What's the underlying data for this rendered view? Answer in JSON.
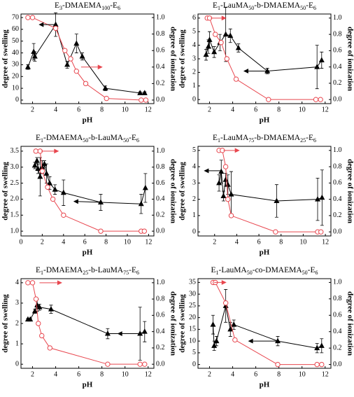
{
  "chart_data": [
    {
      "type": "scatter-line",
      "title": [
        "E",
        "3",
        "-DMAEMA",
        "100",
        "-E",
        "6"
      ],
      "xlabel": "pH",
      "ylabel": "degree of swelling",
      "y2label": "degree of ionization",
      "xlim": [
        1,
        12.5
      ],
      "xticks": [
        2,
        4,
        6,
        8,
        10,
        12
      ],
      "ylim": [
        -3,
        73
      ],
      "yticks": [
        0,
        10,
        20,
        30,
        40,
        50,
        60,
        70
      ],
      "y2lim": [
        -0.043,
        1.043
      ],
      "y2ticks": [
        {
          "value": 0,
          "label": "0.0"
        },
        0.2,
        0.4,
        0.6,
        0.8,
        {
          "value": 1,
          "label": "1.0"
        }
      ],
      "series": [
        {
          "color": "#000000",
          "marker": "triangle",
          "x": [
            1.6,
            2.1,
            2.2,
            4.0,
            5.0,
            5.8,
            6.3,
            8.3,
            11.3,
            11.7
          ],
          "values": [
            28,
            41,
            37,
            64,
            30,
            48,
            37,
            10,
            6,
            6
          ],
          "errors": [
            2,
            7,
            4,
            10,
            3,
            8,
            3,
            2,
            1,
            1
          ]
        },
        {
          "color": "#e8474f",
          "marker": "circle",
          "axis": "y2",
          "x": [
            1.6,
            2.0,
            4.0,
            4.8,
            5.3,
            5.8,
            6.6,
            8.4,
            11.4,
            11.8
          ],
          "values": [
            1.0,
            1.0,
            0.87,
            0.6,
            0.5,
            0.35,
            0.2,
            0.02,
            0.0,
            0.0
          ]
        }
      ],
      "arrows": [
        {
          "color": "#000000",
          "from": [
            4.0,
            64
          ],
          "to": [
            2.6,
            64
          ]
        },
        {
          "color": "#e8474f",
          "axis": "y2",
          "from": [
            6.2,
            0.4
          ],
          "to": [
            8.0,
            0.4
          ]
        }
      ]
    },
    {
      "type": "scatter-line",
      "title": [
        "E",
        "1",
        "-LauMA",
        "50",
        "-b-DMAEMA",
        "50",
        "-E",
        "6"
      ],
      "xlabel": "pH",
      "ylabel": "degree of swelling",
      "y2label": "degree of ionization",
      "xlim": [
        1,
        12.5
      ],
      "xticks": [
        2,
        4,
        6,
        8,
        10,
        12
      ],
      "ylim": [
        -0.3,
        6.3
      ],
      "yticks": [
        0,
        1,
        2,
        3,
        4,
        5,
        6
      ],
      "y2lim": [
        -0.05,
        1.05
      ],
      "y2ticks": [
        {
          "value": 0,
          "label": "0.0"
        },
        0.2,
        0.4,
        0.6,
        0.8,
        {
          "value": 1,
          "label": "1.0"
        }
      ],
      "series": [
        {
          "color": "#000000",
          "marker": "triangle",
          "x": [
            1.7,
            1.9,
            2.0,
            2.4,
            2.9,
            3.4,
            3.8,
            4.5,
            7.0,
            11.3,
            11.7
          ],
          "values": [
            3.3,
            3.9,
            4.4,
            3.5,
            4.2,
            4.8,
            4.7,
            3.8,
            2.1,
            2.4,
            2.9
          ],
          "errors": [
            0.4,
            0.5,
            0.6,
            0.4,
            0.6,
            2.0,
            0.5,
            0.3,
            0.2,
            1.6,
            0.6
          ]
        },
        {
          "color": "#e8474f",
          "marker": "circle",
          "axis": "y2",
          "x": [
            1.8,
            2.0,
            2.5,
            3.0,
            3.5,
            4.3,
            7.1,
            11.2,
            11.6
          ],
          "values": [
            1.0,
            1.0,
            0.8,
            0.7,
            0.5,
            0.25,
            0.0,
            0.0,
            0.0
          ]
        }
      ],
      "arrows": [
        {
          "color": "#e8474f",
          "axis": "y2",
          "from": [
            2.1,
            1.0
          ],
          "to": [
            3.4,
            1.0
          ]
        },
        {
          "color": "#000000",
          "from": [
            7.0,
            2.1
          ],
          "to": [
            5.0,
            2.1
          ]
        }
      ]
    },
    {
      "type": "scatter-line",
      "title": [
        "E",
        "1",
        "-DMAEMA",
        "50",
        "-b-LauMA",
        "50",
        "-E",
        "6"
      ],
      "xlabel": "pH",
      "ylabel": "degree of swelling",
      "y2label": "degree of ionization",
      "xlim": [
        0,
        12.5
      ],
      "xticks": [
        0,
        2,
        4,
        6,
        8,
        10,
        12
      ],
      "ylim": [
        0.85,
        3.65
      ],
      "yticks": [
        {
          "value": 1,
          "label": "1.0"
        },
        1.5,
        {
          "value": 2,
          "label": "2.0"
        },
        2.5,
        {
          "value": 3,
          "label": "3.0"
        },
        3.5
      ],
      "y2lim": [
        -0.06,
        1.06
      ],
      "y2ticks": [
        {
          "value": 0,
          "label": "0.0"
        },
        0.2,
        0.4,
        0.6,
        0.8,
        {
          "value": 1,
          "label": "1.0"
        }
      ],
      "series": [
        {
          "color": "#000000",
          "marker": "triangle",
          "x": [
            1.3,
            1.5,
            1.6,
            1.8,
            2.0,
            2.2,
            2.4,
            2.7,
            3.2,
            4.0,
            7.5,
            11.3,
            11.7
          ],
          "values": [
            3.05,
            3.2,
            2.95,
            2.7,
            3.0,
            3.1,
            2.8,
            2.5,
            2.3,
            2.2,
            1.9,
            1.85,
            2.35
          ],
          "errors": [
            0.1,
            0.1,
            0.15,
            0.6,
            0.2,
            0.1,
            0.3,
            0.2,
            0.15,
            0.4,
            0.25,
            0.3,
            0.45
          ]
        },
        {
          "color": "#e8474f",
          "marker": "circle",
          "axis": "y2",
          "x": [
            1.4,
            1.8,
            2.0,
            2.5,
            3.0,
            4.0,
            7.5,
            11.3,
            11.6
          ],
          "values": [
            1.0,
            1.0,
            0.75,
            0.55,
            0.4,
            0.2,
            0.0,
            0.0,
            0.0
          ]
        }
      ],
      "arrows": [
        {
          "color": "#e8474f",
          "axis": "y2",
          "from": [
            1.9,
            1.0
          ],
          "to": [
            3.5,
            1.0
          ]
        },
        {
          "color": "#000000",
          "from": [
            7.5,
            1.9
          ],
          "to": [
            5.0,
            1.93
          ]
        }
      ]
    },
    {
      "type": "scatter-line",
      "title": [
        "E",
        "1",
        "-LauMA",
        "75",
        "-b-DMAEMA",
        "25",
        "-E",
        "6"
      ],
      "xlabel": "pH",
      "ylabel": "degree of swelling",
      "y2label": "degree of ionization",
      "xlim": [
        0.5,
        12.5
      ],
      "xticks": [
        2,
        4,
        6,
        8,
        10,
        12
      ],
      "ylim": [
        -0.25,
        5.25
      ],
      "yticks": [
        0,
        1,
        2,
        3,
        4,
        5
      ],
      "y2lim": [
        -0.05,
        1.05
      ],
      "y2ticks": [
        {
          "value": 0,
          "label": "0.0"
        },
        0.2,
        0.4,
        0.6,
        0.8,
        {
          "value": 1,
          "label": "1.0"
        }
      ],
      "series": [
        {
          "color": "#000000",
          "marker": "triangle",
          "x": [
            2.4,
            2.6,
            2.8,
            3.0,
            3.2,
            3.5,
            7.6,
            11.3,
            11.7
          ],
          "values": [
            3.0,
            3.7,
            2.2,
            3.2,
            2.9,
            2.3,
            1.9,
            2.0,
            2.1
          ],
          "errors": [
            0.5,
            0.7,
            0.3,
            0.4,
            0.6,
            1.4,
            1.0,
            1.3,
            1.7
          ]
        },
        {
          "color": "#e8474f",
          "marker": "circle",
          "axis": "y2",
          "x": [
            2.4,
            2.7,
            3.0,
            3.2,
            3.5,
            7.5,
            11.3,
            11.6
          ],
          "values": [
            1.0,
            1.0,
            0.8,
            0.4,
            0.2,
            0.0,
            0.0,
            0.0
          ]
        }
      ],
      "arrows": [
        {
          "color": "#e8474f",
          "axis": "y2",
          "from": [
            2.8,
            1.0
          ],
          "to": [
            4.2,
            1.0
          ]
        },
        {
          "color": "#000000",
          "from": [
            2.6,
            3.75
          ],
          "to": [
            1.1,
            3.75
          ]
        }
      ]
    },
    {
      "type": "scatter-line",
      "title": [
        "E",
        "1",
        "-DMAEMA",
        "25",
        "-b-LauMA",
        "75",
        "-E",
        "6"
      ],
      "xlabel": "pH",
      "ylabel": "degree of swelling",
      "y2label": "degree of ionization",
      "xlim": [
        1,
        12.5
      ],
      "xticks": [
        2,
        4,
        6,
        8,
        10,
        12
      ],
      "ylim": [
        -0.2,
        4.2
      ],
      "yticks": [
        0,
        1,
        2,
        3,
        4
      ],
      "y2lim": [
        -0.05,
        1.05
      ],
      "y2ticks": [
        {
          "value": 0,
          "label": "0.0"
        },
        0.2,
        0.4,
        0.6,
        0.8,
        {
          "value": 1,
          "label": "1.0"
        }
      ],
      "series": [
        {
          "color": "#000000",
          "marker": "triangle",
          "x": [
            1.6,
            1.8,
            2.2,
            2.4,
            2.6,
            3.6,
            8.5,
            11.3,
            11.7
          ],
          "values": [
            2.2,
            2.2,
            2.6,
            2.9,
            2.8,
            2.7,
            1.5,
            1.5,
            1.6
          ],
          "errors": [
            0.05,
            0.05,
            0.1,
            0.3,
            0.15,
            0.2,
            0.25,
            1.3,
            0.5
          ]
        },
        {
          "color": "#e8474f",
          "marker": "circle",
          "axis": "y2",
          "x": [
            1.6,
            2.0,
            2.3,
            2.5,
            2.8,
            3.5,
            8.5,
            11.3,
            11.7
          ],
          "values": [
            1.0,
            1.0,
            0.8,
            0.5,
            0.35,
            0.2,
            0.0,
            0.0,
            0.0
          ]
        }
      ],
      "arrows": [
        {
          "color": "#e8474f",
          "axis": "y2",
          "from": [
            2.6,
            1.0
          ],
          "to": [
            4.5,
            1.0
          ]
        },
        {
          "color": "#000000",
          "from": [
            11.3,
            1.5
          ],
          "to": [
            9.4,
            1.5
          ]
        }
      ]
    },
    {
      "type": "scatter-line",
      "title": [
        "E",
        "1",
        "-LauMA",
        "50",
        "-co-DMAEMA",
        "50",
        "-E",
        "6"
      ],
      "xlabel": "pH",
      "ylabel": "degree of swelling",
      "y2label": "degree of ionization",
      "xlim": [
        1,
        12.5
      ],
      "xticks": [
        2,
        4,
        6,
        8,
        10,
        12
      ],
      "ylim": [
        -1.6,
        36.6
      ],
      "yticks": [
        0,
        5,
        10,
        15,
        20,
        25,
        30,
        35
      ],
      "y2lim": [
        -0.046,
        1.046
      ],
      "y2ticks": [
        {
          "value": 0,
          "label": "0.0"
        },
        0.2,
        0.4,
        0.6,
        0.8,
        {
          "value": 1,
          "label": "1.0"
        }
      ],
      "series": [
        {
          "color": "#000000",
          "marker": "triangle",
          "x": [
            2.3,
            2.4,
            2.6,
            3.4,
            3.8,
            4.1,
            7.9,
            11.3,
            11.7
          ],
          "values": [
            17,
            8,
            10,
            25,
            15,
            17,
            10,
            7,
            8
          ],
          "errors": [
            4,
            2,
            2,
            7,
            3,
            2,
            2,
            2,
            3
          ]
        },
        {
          "color": "#e8474f",
          "marker": "circle",
          "axis": "y2",
          "x": [
            2.3,
            2.5,
            3.4,
            4.2,
            7.9,
            11.3,
            11.7
          ],
          "values": [
            1.0,
            1.0,
            0.75,
            0.3,
            0.0,
            0.0,
            0.0
          ]
        }
      ],
      "arrows": [
        {
          "color": "#e8474f",
          "axis": "y2",
          "from": [
            2.4,
            1.0
          ],
          "to": [
            3.4,
            1.0
          ]
        },
        {
          "color": "#000000",
          "from": [
            7.9,
            10
          ],
          "to": [
            5.4,
            10
          ]
        }
      ]
    }
  ]
}
